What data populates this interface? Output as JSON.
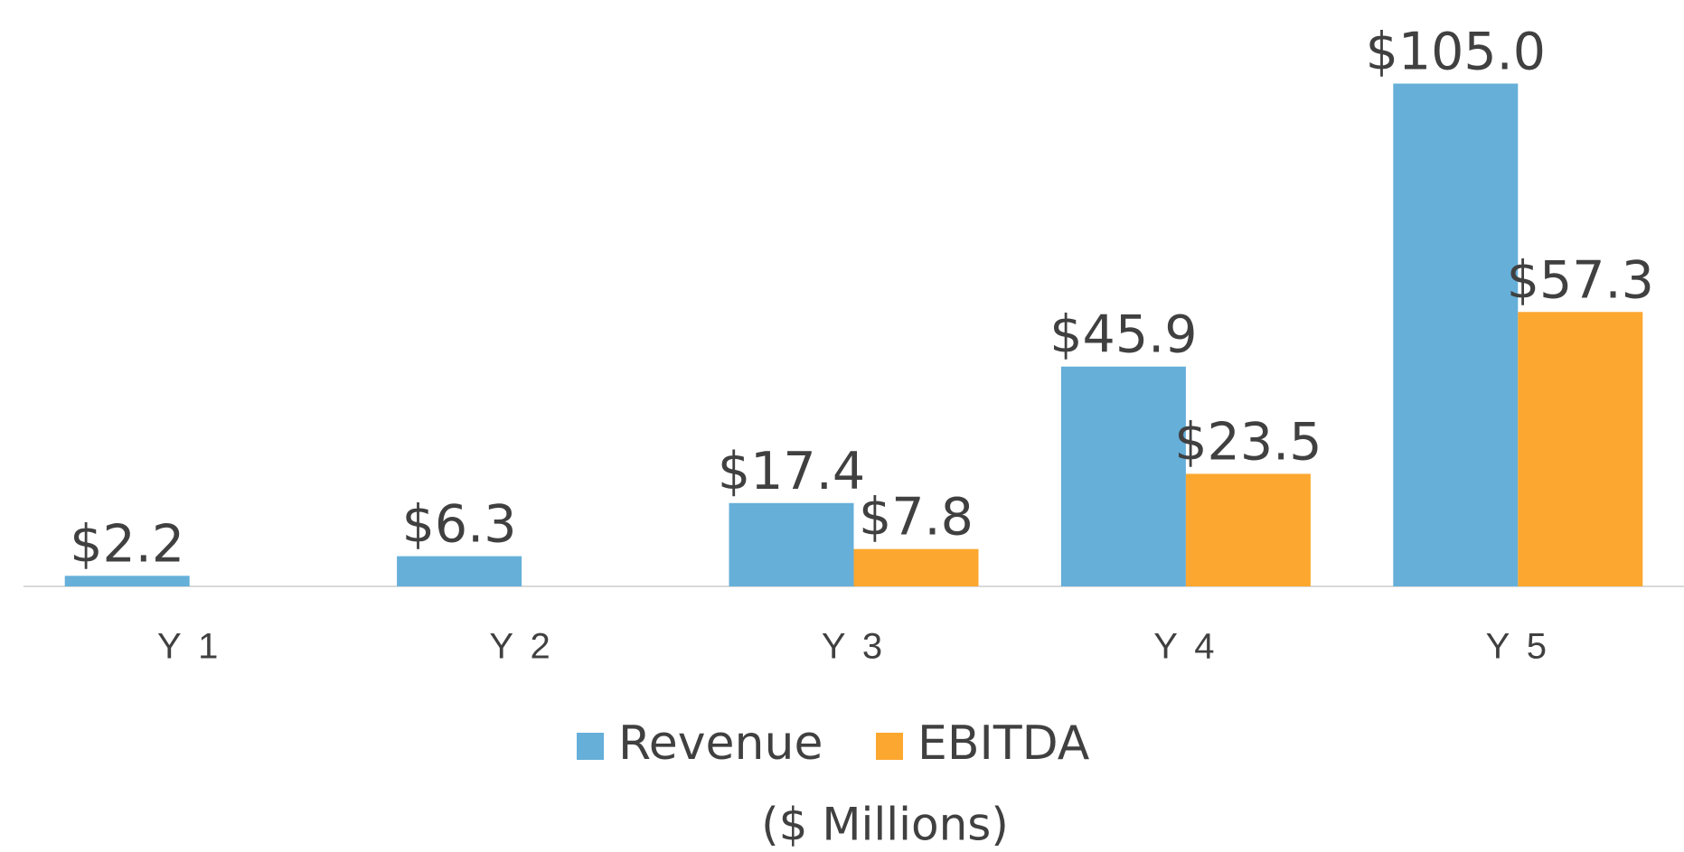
{
  "chart_data": {
    "type": "bar",
    "subtitle": "($ Millions)",
    "categories": [
      "Y 1",
      "Y 2",
      "Y 3",
      "Y 4",
      "Y 5"
    ],
    "series": [
      {
        "name": "Revenue",
        "color": "#65afd9",
        "values": [
          2.2,
          6.3,
          17.4,
          45.9,
          105.0
        ],
        "value_labels": [
          "$2.2",
          "$6.3",
          "$17.4",
          "$45.9",
          "$105.0"
        ]
      },
      {
        "name": "EBITDA",
        "color": "#fca72f",
        "values": [
          null,
          null,
          7.8,
          23.5,
          57.3
        ],
        "value_labels": [
          null,
          null,
          "$7.8",
          "$23.5",
          "$57.3"
        ]
      }
    ],
    "ylim": [
      0,
      120
    ],
    "grid": false,
    "legend": "bottom"
  }
}
